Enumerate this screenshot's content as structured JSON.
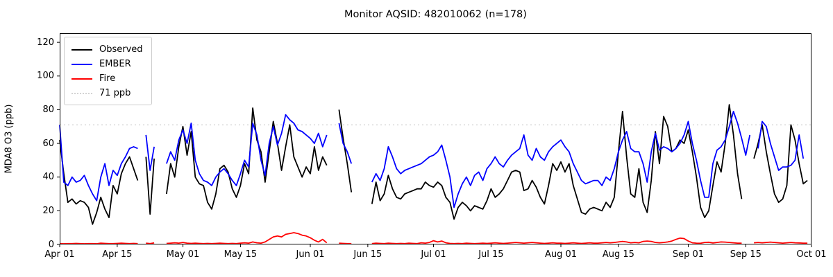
{
  "title": "Monitor AQSID: 482010062 (n=178)",
  "colors": {
    "observed": "#000000",
    "ember": "#0000ff",
    "fire": "#ff0000",
    "threshold": "#d3d3d3",
    "axis": "#000000"
  },
  "legend": {
    "items": [
      {
        "label": "Observed",
        "color": "#000000",
        "style": "solid"
      },
      {
        "label": "EMBER",
        "color": "#0000ff",
        "style": "solid"
      },
      {
        "label": "Fire",
        "color": "#ff0000",
        "style": "solid"
      },
      {
        "label": "71 ppb",
        "color": "#d3d3d3",
        "style": "dotted"
      }
    ]
  },
  "chart_data": {
    "type": "line",
    "title": "Monitor AQSID: 482010062 (n=178)",
    "xlabel": "",
    "ylabel": "MDA8 O3 (ppb)",
    "ylim": [
      0,
      125.4
    ],
    "y_ticks": [
      0,
      20,
      40,
      60,
      80,
      100,
      120
    ],
    "x_unit": "days since Apr 01",
    "x_range_days": 183,
    "x_ticks": [
      {
        "label": "Apr 01",
        "day": 0
      },
      {
        "label": "Apr 15",
        "day": 14
      },
      {
        "label": "May 01",
        "day": 30
      },
      {
        "label": "May 15",
        "day": 44
      },
      {
        "label": "Jun 01",
        "day": 61
      },
      {
        "label": "Jun 15",
        "day": 75
      },
      {
        "label": "Jul 01",
        "day": 91
      },
      {
        "label": "Jul 15",
        "day": 105
      },
      {
        "label": "Aug 01",
        "day": 122
      },
      {
        "label": "Aug 15",
        "day": 136
      },
      {
        "label": "Sep 01",
        "day": 153
      },
      {
        "label": "Sep 15",
        "day": 167
      },
      {
        "label": "Oct 01",
        "day": 183
      }
    ],
    "threshold": {
      "label": "71 ppb",
      "value": 71,
      "color": "#d3d3d3",
      "style": "dotted"
    },
    "legend_position": "upper left",
    "grid": false,
    "series": [
      {
        "name": "Observed",
        "color": "#000000",
        "values": [
          62,
          42,
          25,
          27,
          24,
          26,
          25,
          22,
          12,
          19,
          28,
          21,
          16,
          35,
          30,
          42,
          48,
          52,
          45,
          38,
          null,
          52,
          18,
          51,
          null,
          null,
          30,
          48,
          40,
          58,
          70,
          53,
          67,
          40,
          36,
          35,
          25,
          21,
          30,
          45,
          47,
          43,
          33,
          28,
          35,
          48,
          42,
          81,
          62,
          55,
          37,
          55,
          73,
          60,
          44,
          58,
          71,
          52,
          46,
          40,
          46,
          42,
          58,
          44,
          52,
          47,
          null,
          null,
          80,
          63,
          48,
          31,
          null,
          null,
          null,
          null,
          24,
          37,
          26,
          30,
          41,
          33,
          28,
          27,
          30,
          31,
          32,
          33,
          33,
          37,
          35,
          34,
          37,
          35,
          28,
          25,
          15,
          22,
          25,
          23,
          20,
          23,
          22,
          21,
          26,
          33,
          28,
          30,
          33,
          38,
          43,
          44,
          43,
          32,
          33,
          38,
          34,
          28,
          24,
          35,
          48,
          44,
          49,
          43,
          48,
          35,
          27,
          19,
          18,
          21,
          22,
          21,
          20,
          25,
          22,
          28,
          55,
          79,
          52,
          30,
          28,
          45,
          25,
          19,
          38,
          67,
          48,
          76,
          70,
          55,
          57,
          62,
          60,
          68,
          55,
          40,
          22,
          16,
          20,
          35,
          49,
          43,
          60,
          83,
          65,
          42,
          27,
          null,
          null,
          51,
          60,
          71,
          55,
          42,
          30,
          25,
          27,
          35,
          71,
          62,
          48,
          36,
          38,
          null
        ]
      },
      {
        "name": "EMBER",
        "color": "#0000ff",
        "values": [
          71,
          37,
          35,
          40,
          37,
          38,
          41,
          35,
          30,
          26,
          40,
          48,
          35,
          44,
          41,
          48,
          52,
          57,
          58,
          57,
          null,
          65,
          44,
          58,
          null,
          null,
          48,
          55,
          50,
          62,
          68,
          60,
          72,
          50,
          42,
          38,
          37,
          35,
          40,
          43,
          45,
          42,
          38,
          35,
          42,
          50,
          46,
          72,
          65,
          50,
          41,
          60,
          70,
          59,
          66,
          77,
          74,
          72,
          68,
          67,
          65,
          63,
          60,
          66,
          58,
          65,
          null,
          null,
          72,
          60,
          55,
          48,
          null,
          null,
          null,
          null,
          37,
          42,
          38,
          45,
          58,
          52,
          45,
          42,
          44,
          45,
          46,
          47,
          48,
          50,
          52,
          53,
          55,
          59,
          50,
          40,
          22,
          30,
          36,
          40,
          35,
          41,
          43,
          38,
          45,
          48,
          52,
          48,
          46,
          50,
          53,
          55,
          57,
          65,
          53,
          50,
          57,
          52,
          50,
          55,
          58,
          60,
          62,
          58,
          55,
          48,
          43,
          38,
          36,
          37,
          38,
          38,
          35,
          40,
          38,
          45,
          55,
          62,
          67,
          57,
          55,
          55,
          48,
          37,
          55,
          66,
          56,
          58,
          57,
          55,
          57,
          60,
          65,
          73,
          60,
          50,
          38,
          28,
          28,
          48,
          56,
          58,
          62,
          70,
          79,
          72,
          63,
          53,
          65,
          null,
          57,
          73,
          70,
          60,
          52,
          44,
          46,
          46,
          47,
          50,
          65,
          51,
          null,
          null
        ]
      },
      {
        "name": "Fire",
        "color": "#ff0000",
        "values": [
          0.5,
          0.4,
          0.5,
          0.5,
          0.6,
          0.5,
          0.4,
          0.5,
          0.5,
          0.4,
          0.8,
          0.6,
          0.5,
          0.5,
          0.6,
          0.8,
          0.6,
          0.5,
          0.6,
          0.5,
          null,
          0.8,
          0.5,
          0.9,
          null,
          null,
          0.6,
          0.8,
          1.0,
          0.8,
          1.2,
          0.8,
          0.6,
          0.8,
          0.6,
          0.5,
          0.6,
          0.5,
          0.6,
          0.8,
          0.6,
          0.5,
          0.6,
          0.5,
          0.8,
          1.0,
          0.8,
          1.5,
          1.0,
          0.8,
          1.5,
          3.0,
          4.5,
          5.0,
          4.5,
          6.0,
          6.5,
          7.0,
          6.5,
          5.5,
          5.0,
          4.0,
          2.5,
          1.5,
          3.0,
          1.0,
          null,
          null,
          0.8,
          0.6,
          0.5,
          0.5,
          null,
          null,
          null,
          null,
          0.5,
          0.8,
          0.6,
          0.5,
          0.8,
          0.6,
          0.5,
          0.6,
          0.5,
          0.8,
          0.6,
          0.5,
          1.0,
          0.8,
          1.2,
          2.2,
          1.5,
          2.0,
          1.0,
          0.6,
          0.5,
          0.6,
          0.5,
          0.8,
          0.6,
          0.5,
          0.6,
          0.8,
          0.6,
          0.8,
          1.0,
          0.8,
          0.6,
          0.8,
          1.0,
          1.2,
          1.0,
          0.8,
          1.0,
          1.2,
          1.0,
          0.8,
          0.6,
          0.8,
          1.0,
          0.8,
          0.8,
          0.6,
          0.8,
          1.0,
          0.8,
          0.6,
          0.8,
          1.0,
          0.8,
          0.8,
          1.0,
          1.2,
          1.0,
          1.2,
          1.5,
          1.8,
          1.5,
          1.0,
          1.2,
          1.0,
          1.8,
          2.0,
          1.8,
          1.2,
          1.0,
          1.2,
          1.5,
          2.0,
          3.0,
          3.8,
          3.5,
          2.0,
          1.0,
          0.8,
          0.7,
          1.2,
          1.3,
          0.9,
          1.2,
          1.5,
          1.4,
          1.2,
          1.0,
          0.8,
          0.8,
          null,
          null,
          1.0,
          1.2,
          1.0,
          1.2,
          1.4,
          1.2,
          1.0,
          0.8,
          1.0,
          1.2,
          1.0,
          0.9,
          0.8,
          0.8,
          null
        ]
      }
    ]
  }
}
